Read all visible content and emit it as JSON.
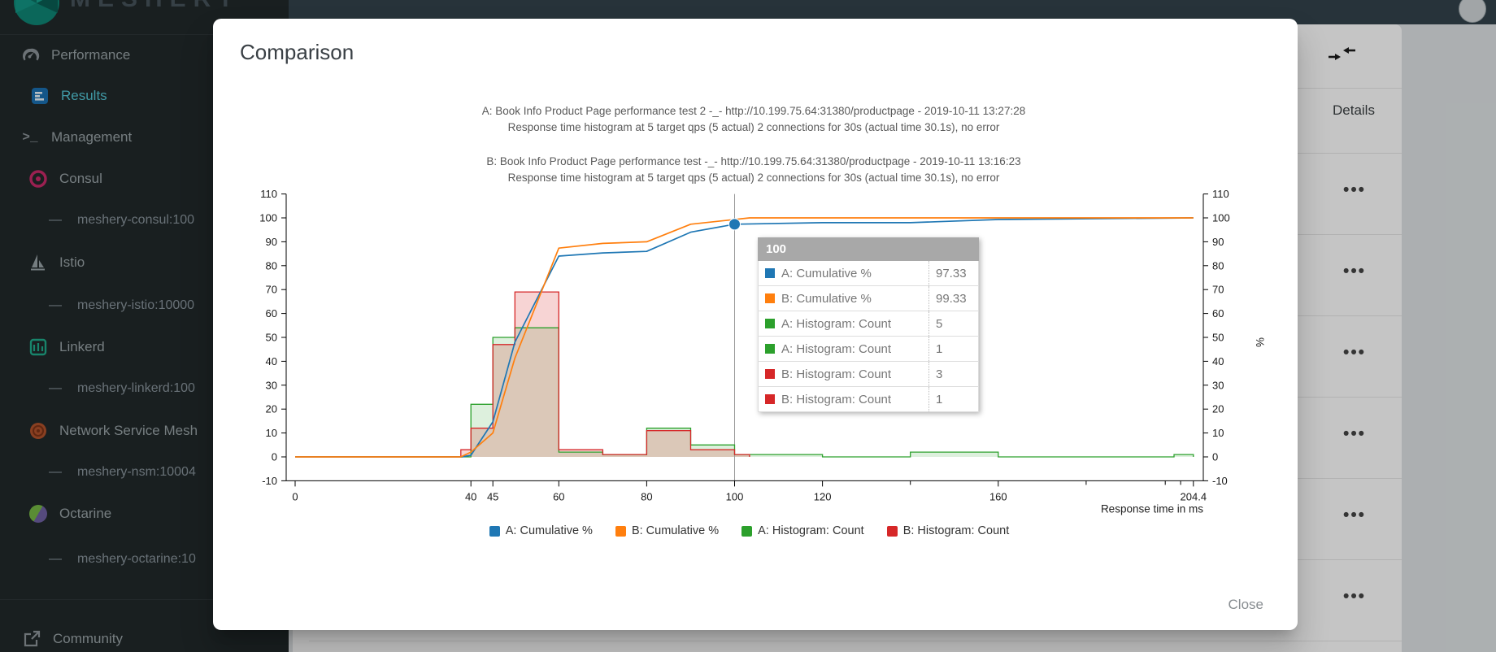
{
  "sidebar": {
    "logo_text": "MESHERY",
    "items": [
      {
        "id": "performance",
        "label": "Performance",
        "icon": "gauge-icon",
        "type": "top"
      },
      {
        "id": "results",
        "label": "Results",
        "icon": "results-icon",
        "type": "child",
        "active": true
      },
      {
        "id": "management",
        "label": "Management",
        "icon": "terminal-icon",
        "type": "top"
      },
      {
        "id": "consul",
        "label": "Consul",
        "icon": "consul-icon",
        "type": "mesh"
      },
      {
        "id": "consul-adapter",
        "label": "meshery-consul:100",
        "type": "sub"
      },
      {
        "id": "istio",
        "label": "Istio",
        "icon": "istio-icon",
        "type": "mesh"
      },
      {
        "id": "istio-adapter",
        "label": "meshery-istio:10000",
        "type": "sub"
      },
      {
        "id": "linkerd",
        "label": "Linkerd",
        "icon": "linkerd-icon",
        "type": "mesh"
      },
      {
        "id": "linkerd-adapter",
        "label": "meshery-linkerd:100",
        "type": "sub"
      },
      {
        "id": "nsm",
        "label": "Network Service Mesh",
        "icon": "nsm-icon",
        "type": "mesh"
      },
      {
        "id": "nsm-adapter",
        "label": "meshery-nsm:10004",
        "type": "sub"
      },
      {
        "id": "octarine",
        "label": "Octarine",
        "icon": "octarine-icon",
        "type": "mesh"
      },
      {
        "id": "octarine-adapter",
        "label": "meshery-octarine:10",
        "type": "sub"
      },
      {
        "id": "community",
        "label": "Community",
        "icon": "external-link-icon",
        "type": "footer"
      }
    ]
  },
  "background_table": {
    "details_header": "Details",
    "row_action": "•••",
    "rows": 6
  },
  "modal": {
    "title": "Comparison",
    "close_label": "Close"
  },
  "chart_data": {
    "type": "line+step-histogram comparison",
    "titles": [
      "A: Book Info Product Page performance test 2 -_- http://10.199.75.64:31380/productpage - 2019-10-11 13:27:28",
      "Response time histogram at 5 target qps (5 actual) 2 connections for 30s (actual time 30.1s), no error",
      "B: Book Info Product Page performance test -_- http://10.199.75.64:31380/productpage - 2019-10-11 13:16:23",
      "Response time histogram at 5 target qps (5 actual) 2 connections for 30s (actual time 30.1s), no error"
    ],
    "xlabel": "Response time in ms",
    "right_ylabel": "%",
    "xlim": [
      0,
      204.4
    ],
    "ylim": [
      -10,
      110
    ],
    "x_ticks": [
      0,
      40,
      45,
      60,
      80,
      100,
      120,
      160,
      204.4
    ],
    "x_minor_ticks": [
      140,
      180,
      198,
      201.5
    ],
    "y_ticks": [
      -10,
      0,
      10,
      20,
      30,
      40,
      50,
      60,
      70,
      80,
      90,
      100,
      110
    ],
    "series": [
      {
        "name": "A: Cumulative %",
        "type": "line",
        "color": "#1f77b4",
        "points": [
          [
            0,
            0
          ],
          [
            37.9,
            0
          ],
          [
            40,
            0.67
          ],
          [
            45,
            14.67
          ],
          [
            50,
            48
          ],
          [
            60,
            84
          ],
          [
            70,
            85.33
          ],
          [
            80,
            86
          ],
          [
            90,
            94
          ],
          [
            100,
            97.33
          ],
          [
            120,
            98
          ],
          [
            140,
            98
          ],
          [
            160,
            99.33
          ],
          [
            204.4,
            100
          ]
        ]
      },
      {
        "name": "B: Cumulative %",
        "type": "line",
        "color": "#ff7f0e",
        "points": [
          [
            0,
            0
          ],
          [
            37.7,
            0
          ],
          [
            40,
            2
          ],
          [
            45,
            10
          ],
          [
            50,
            41.33
          ],
          [
            60,
            87.33
          ],
          [
            70,
            89.33
          ],
          [
            80,
            90
          ],
          [
            90,
            97.33
          ],
          [
            100,
            99.33
          ],
          [
            103.4,
            100
          ],
          [
            204.4,
            100
          ]
        ]
      },
      {
        "name": "A: Histogram: Count",
        "type": "step",
        "color": "#2ca02c",
        "fill": "rgba(44,160,44,0.16)",
        "points": [
          [
            0,
            0
          ],
          [
            40,
            0
          ],
          [
            40,
            22
          ],
          [
            45,
            22
          ],
          [
            45,
            50
          ],
          [
            50,
            50
          ],
          [
            50,
            54
          ],
          [
            60,
            54
          ],
          [
            60,
            2
          ],
          [
            70,
            2
          ],
          [
            70,
            1
          ],
          [
            80,
            1
          ],
          [
            80,
            12
          ],
          [
            90,
            12
          ],
          [
            90,
            5
          ],
          [
            100,
            5
          ],
          [
            100,
            1
          ],
          [
            120,
            1
          ],
          [
            120,
            0
          ],
          [
            140,
            0
          ],
          [
            140,
            2
          ],
          [
            160,
            2
          ],
          [
            160,
            0
          ],
          [
            200,
            0
          ],
          [
            200,
            1
          ],
          [
            204.4,
            1
          ],
          [
            204.4,
            0
          ]
        ]
      },
      {
        "name": "B: Histogram: Count",
        "type": "step",
        "color": "#d62728",
        "fill": "rgba(214,39,40,0.20)",
        "points": [
          [
            0,
            0
          ],
          [
            37.7,
            0
          ],
          [
            37.7,
            3
          ],
          [
            40,
            3
          ],
          [
            40,
            12
          ],
          [
            45,
            12
          ],
          [
            45,
            47
          ],
          [
            50,
            47
          ],
          [
            50,
            69
          ],
          [
            60,
            69
          ],
          [
            60,
            3
          ],
          [
            70,
            3
          ],
          [
            70,
            1
          ],
          [
            80,
            1
          ],
          [
            80,
            11
          ],
          [
            90,
            11
          ],
          [
            90,
            3
          ],
          [
            100,
            3
          ],
          [
            100,
            1
          ],
          [
            103.4,
            1
          ],
          [
            103.4,
            0
          ]
        ]
      }
    ],
    "legend": [
      {
        "label": "A: Cumulative %",
        "color": "#1f77b4"
      },
      {
        "label": "B: Cumulative %",
        "color": "#ff7f0e"
      },
      {
        "label": "A: Histogram: Count",
        "color": "#2ca02c"
      },
      {
        "label": "B: Histogram: Count",
        "color": "#d62728"
      }
    ],
    "tooltip": {
      "x": 100,
      "header": "100",
      "rows": [
        {
          "color": "#1f77b4",
          "label": "A: Cumulative %",
          "value": "97.33"
        },
        {
          "color": "#ff7f0e",
          "label": "B: Cumulative %",
          "value": "99.33"
        },
        {
          "color": "#2ca02c",
          "label": "A: Histogram: Count",
          "value": "5"
        },
        {
          "color": "#2ca02c",
          "label": "A: Histogram: Count",
          "value": "1"
        },
        {
          "color": "#d62728",
          "label": "B: Histogram: Count",
          "value": "3"
        },
        {
          "color": "#d62728",
          "label": "B: Histogram: Count",
          "value": "1"
        }
      ]
    },
    "marker": {
      "x": 100,
      "y": 97.33,
      "color": "#1f77b4"
    }
  }
}
